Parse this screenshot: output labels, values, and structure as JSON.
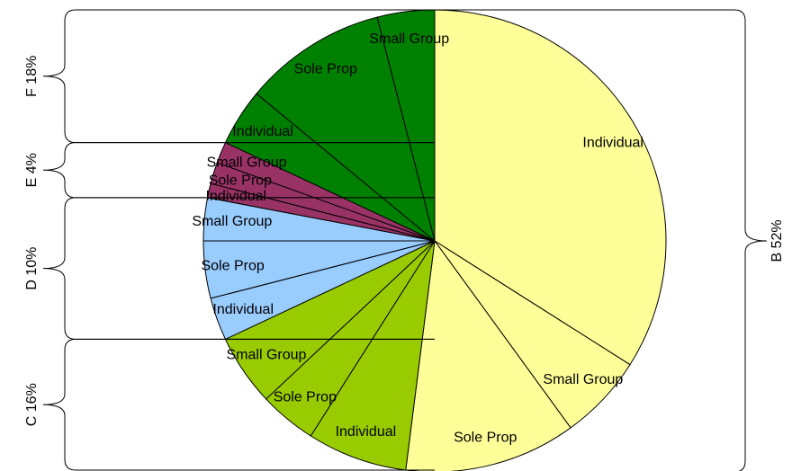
{
  "chart_data": {
    "type": "pie",
    "title": "",
    "slices": [
      {
        "group": "B",
        "label": "Individual",
        "value": 34
      },
      {
        "group": "B",
        "label": "Small Group",
        "value": 6
      },
      {
        "group": "B",
        "label": "Sole Prop",
        "value": 12
      },
      {
        "group": "C",
        "label": "Individual",
        "value": 7
      },
      {
        "group": "C",
        "label": "Sole Prop",
        "value": 4
      },
      {
        "group": "C",
        "label": "Small Group",
        "value": 5
      },
      {
        "group": "D",
        "label": "Individual",
        "value": 3
      },
      {
        "group": "D",
        "label": "Sole Prop",
        "value": 4
      },
      {
        "group": "D",
        "label": "Small Group",
        "value": 3
      },
      {
        "group": "E",
        "label": "Individual",
        "value": 1
      },
      {
        "group": "E",
        "label": "Sole Prop",
        "value": 1.5
      },
      {
        "group": "E",
        "label": "Small Group",
        "value": 1.5
      },
      {
        "group": "F",
        "label": "Individual",
        "value": 4
      },
      {
        "group": "F",
        "label": "Sole Prop",
        "value": 10
      },
      {
        "group": "F",
        "label": "Small Group",
        "value": 4
      }
    ],
    "groups": [
      {
        "name": "B",
        "label": "B 52%",
        "color": "#ffff99"
      },
      {
        "name": "C",
        "label": "C 16%",
        "color": "#99cc00"
      },
      {
        "name": "D",
        "label": "D 10%",
        "color": "#99ccff"
      },
      {
        "name": "E",
        "label": "E 4%",
        "color": "#993366"
      },
      {
        "name": "F",
        "label": "F 18%",
        "color": "#008000"
      }
    ]
  }
}
